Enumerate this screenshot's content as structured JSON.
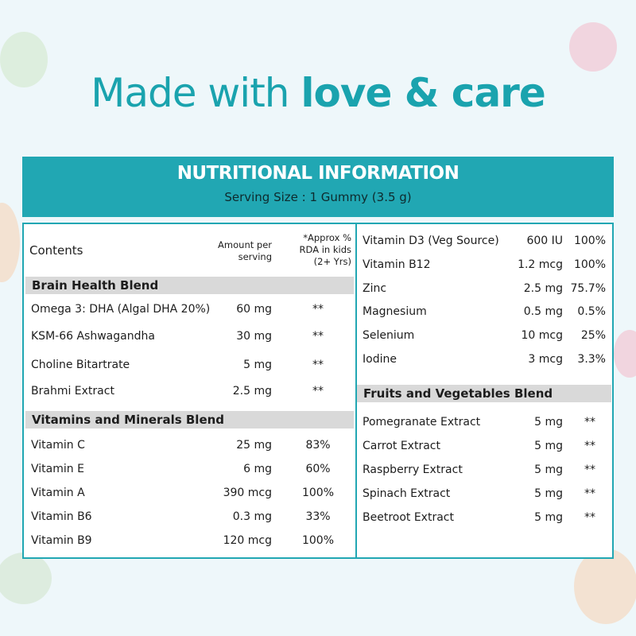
{
  "title": {
    "light": "Made with ",
    "bold": "love & care"
  },
  "banner": {
    "heading": "NUTRITIONAL INFORMATION",
    "serving": "Serving Size : 1 Gummy (3.5 g)"
  },
  "headers": {
    "contents": "Contents",
    "amount": "Amount per serving",
    "rda": "*Approx % RDA in kids (2+ Yrs)"
  },
  "sections": {
    "brain": "Brain Health Blend",
    "vitamins": "Vitamins and Minerals Blend",
    "fruits": "Fruits and Vegetables Blend"
  },
  "left_rows": [
    {
      "name": "Omega 3: DHA (Algal DHA 20%)",
      "amount": "60 mg",
      "rda": "**"
    },
    {
      "name": "KSM-66 Ashwagandha",
      "amount": "30 mg",
      "rda": "**"
    },
    {
      "name": "Choline Bitartrate",
      "amount": "5 mg",
      "rda": "**"
    },
    {
      "name": "Brahmi Extract",
      "amount": "2.5 mg",
      "rda": "**"
    },
    {
      "name": "Vitamin C",
      "amount": "25 mg",
      "rda": "83%"
    },
    {
      "name": "Vitamin E",
      "amount": "6 mg",
      "rda": "60%"
    },
    {
      "name": "Vitamin A",
      "amount": "390 mcg",
      "rda": "100%"
    },
    {
      "name": "Vitamin B6",
      "amount": "0.3 mg",
      "rda": "33%"
    },
    {
      "name": "Vitamin B9",
      "amount": "120 mcg",
      "rda": "100%"
    }
  ],
  "right_rows": [
    {
      "name": "Vitamin D3 (Veg Source)",
      "amount": "600 IU",
      "rda": "100%"
    },
    {
      "name": "Vitamin B12",
      "amount": "1.2 mcg",
      "rda": "100%"
    },
    {
      "name": "Zinc",
      "amount": "2.5 mg",
      "rda": "75.7%"
    },
    {
      "name": "Magnesium",
      "amount": "0.5 mg",
      "rda": "0.5%"
    },
    {
      "name": "Selenium",
      "amount": "10 mcg",
      "rda": "25%"
    },
    {
      "name": "Iodine",
      "amount": "3 mcg",
      "rda": "3.3%"
    },
    {
      "name": "Pomegranate Extract",
      "amount": "5 mg",
      "rda": "**"
    },
    {
      "name": "Carrot Extract",
      "amount": "5 mg",
      "rda": "**"
    },
    {
      "name": "Raspberry Extract",
      "amount": "5 mg",
      "rda": "**"
    },
    {
      "name": "Spinach Extract",
      "amount": "5 mg",
      "rda": "**"
    },
    {
      "name": "Beetroot Extract",
      "amount": "5 mg",
      "rda": "**"
    }
  ]
}
